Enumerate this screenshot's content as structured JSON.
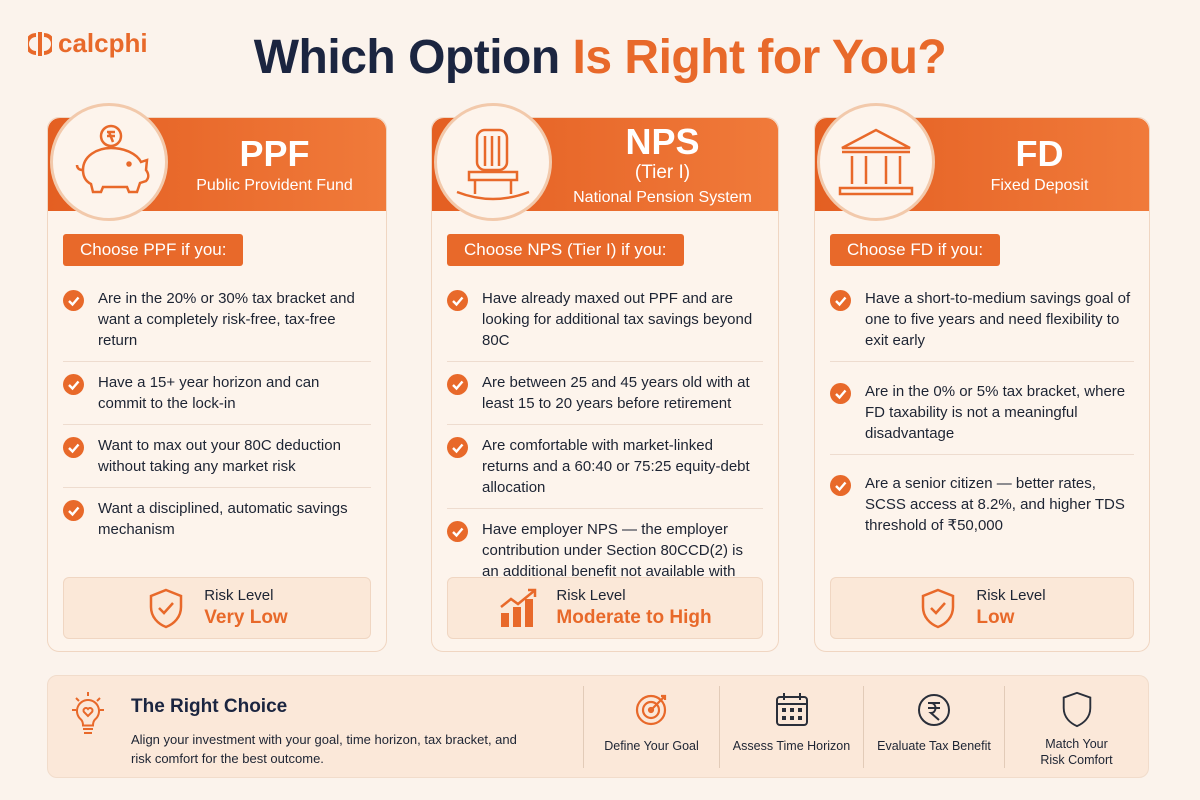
{
  "brand": "calcphi",
  "title": {
    "part1": "Which Option",
    "part2": "Is Right for You?"
  },
  "cards": [
    {
      "name": "PPF",
      "full_name": "Public Provident Fund",
      "choose_label": "Choose PPF if you:",
      "points": [
        "Are in the 20% or 30% tax bracket and want a completely risk-free, tax-free return",
        "Have a 15+ year horizon and can commit to the lock-in",
        "Want to max out your 80C deduction without taking any market risk",
        "Want a disciplined, automatic savings mechanism"
      ],
      "risk_label": "Risk Level",
      "risk_value": "Very Low"
    },
    {
      "name": "NPS",
      "qualifier": "(Tier I)",
      "full_name": "National Pension System",
      "choose_label": "Choose NPS (Tier I) if you:",
      "points": [
        "Have already maxed out PPF and are looking for additional tax savings beyond 80C",
        "Are between 25 and 45 years old with at least 15 to 20 years before retirement",
        "Are comfortable with market-linked returns and a 60:40 or 75:25 equity-debt allocation",
        "Have employer NPS — the employer contribution under Section 80CCD(2) is an additional benefit not available with PPF"
      ],
      "risk_label": "Risk Level",
      "risk_value": "Moderate to High"
    },
    {
      "name": "FD",
      "full_name": "Fixed Deposit",
      "choose_label": "Choose FD if you:",
      "points": [
        "Have a short-to-medium savings goal of one to five years and need flexibility to exit early",
        "Are in the 0% or 5% tax bracket, where FD taxability is not a meaningful disadvantage",
        "Are a senior citizen — better rates, SCSS access at 8.2%, and higher TDS threshold of ₹50,000"
      ],
      "risk_label": "Risk Level",
      "risk_value": "Low"
    }
  ],
  "footer": {
    "title": "The Right Choice",
    "text": "Align your investment with your goal, time horizon, tax bracket, and risk comfort for the best outcome.",
    "steps": [
      "Define Your Goal",
      "Assess Time Horizon",
      "Evaluate Tax Benefit",
      "Match Your Risk Comfort"
    ]
  }
}
